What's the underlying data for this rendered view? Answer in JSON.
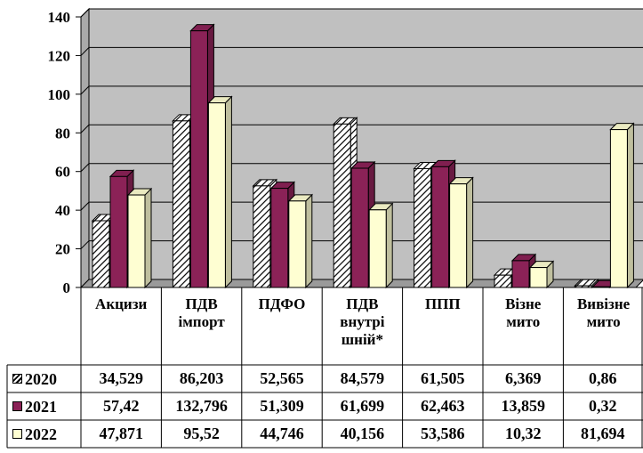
{
  "chart_data": {
    "type": "bar",
    "title": "",
    "xlabel": "",
    "ylabel": "",
    "ylim": [
      0,
      140
    ],
    "yticks": [
      0,
      20,
      40,
      60,
      80,
      100,
      120,
      140
    ],
    "grid": true,
    "legend": "table-left",
    "categories": [
      "Акцизи",
      "ПДВ імпорт",
      "ПДФО",
      "ПДВ внутрі шній*",
      "ППП",
      "Візне мито",
      "Вивізне мито"
    ],
    "category_lines": [
      [
        "Акцизи"
      ],
      [
        "ПДВ",
        "імпорт"
      ],
      [
        "ПДФО"
      ],
      [
        "ПДВ",
        "внутрі",
        "шній*"
      ],
      [
        "ППП"
      ],
      [
        "Візне",
        "мито"
      ],
      [
        "Вивізне",
        "мито"
      ]
    ],
    "series": [
      {
        "name": "2020",
        "values": [
          34.529,
          86.203,
          52.565,
          84.579,
          61.505,
          6.369,
          0.86
        ],
        "labels": [
          "34,529",
          "86,203",
          "52,565",
          "84,579",
          "61,505",
          "6,369",
          "0,86"
        ],
        "color": "#ffffff",
        "pattern": "hatch"
      },
      {
        "name": "2021",
        "values": [
          57.42,
          132.796,
          51.309,
          61.699,
          62.463,
          13.859,
          0.32
        ],
        "labels": [
          "57,42",
          "132,796",
          "51,309",
          "61,699",
          "62,463",
          "13,859",
          "0,32"
        ],
        "color": "#8b2257",
        "pattern": "solid"
      },
      {
        "name": "2022",
        "values": [
          47.871,
          95.52,
          44.746,
          40.156,
          53.586,
          10.32,
          81.694
        ],
        "labels": [
          "47,871",
          "95,52",
          "44,746",
          "40,156",
          "53,586",
          "10,32",
          "81,694"
        ],
        "color": "#fefed2",
        "pattern": "solid"
      }
    ]
  },
  "colors": {
    "plot_background": "#c0c0c0",
    "floor": "#9a9a9a",
    "axis": "#000000"
  }
}
